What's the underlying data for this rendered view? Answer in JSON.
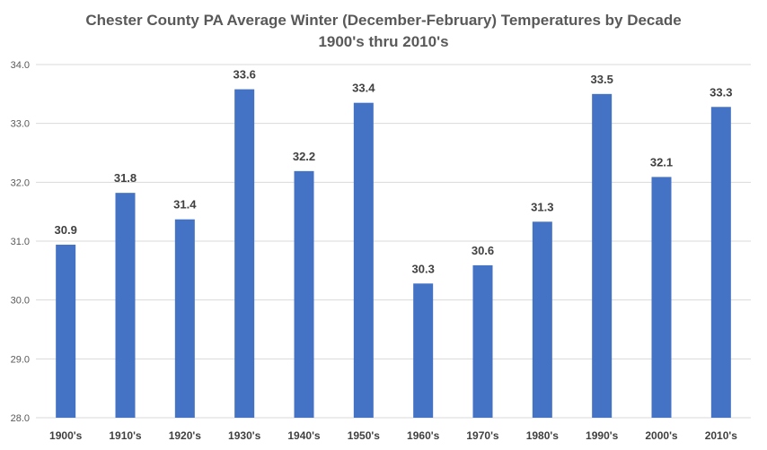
{
  "chart_data": {
    "type": "bar",
    "title_lines": [
      "Chester County PA Average Winter (December-February) Temperatures by Decade",
      "1900's thru 2010's"
    ],
    "categories": [
      "1900's",
      "1910's",
      "1920's",
      "1930's",
      "1940's",
      "1950's",
      "1960's",
      "1970's",
      "1980's",
      "1990's",
      "2000's",
      "2010's"
    ],
    "values": [
      30.94,
      31.82,
      31.37,
      33.58,
      32.19,
      33.35,
      30.28,
      30.59,
      31.33,
      33.5,
      32.09,
      33.28
    ],
    "data_labels": [
      "30.9",
      "31.8",
      "31.4",
      "33.6",
      "32.2",
      "33.4",
      "30.3",
      "30.6",
      "31.3",
      "33.5",
      "32.1",
      "33.3"
    ],
    "y_ticks": [
      "28.0",
      "29.0",
      "30.0",
      "31.0",
      "32.0",
      "33.0",
      "34.0"
    ],
    "ylim": [
      28,
      34
    ],
    "xlabel": "",
    "ylabel": "",
    "grid": true,
    "legend": "none",
    "bar_color": "#4472C4",
    "grid_color": "#D9D9D9",
    "text_color": "#595959",
    "label_color": "#404040"
  }
}
